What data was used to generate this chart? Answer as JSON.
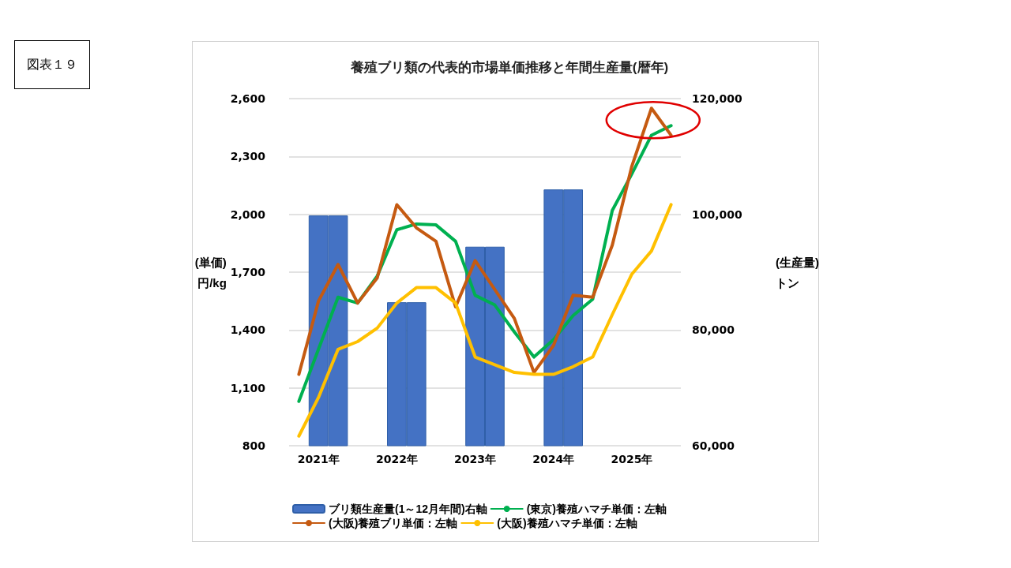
{
  "chart_data": {
    "type": "line",
    "title": "養殖ブリ類の代表的市場単価推移と年間生産量(暦年)",
    "ylabel": "(単価)\n円/kg",
    "y2label": "(生産量)\nトン",
    "annotations": [
      "図表１９"
    ],
    "categories": [
      null,
      "2021年",
      null,
      null,
      null,
      "2022年",
      null,
      null,
      null,
      "2023年",
      null,
      null,
      null,
      "2024年",
      null,
      null,
      null,
      "2025年",
      null,
      null
    ],
    "series": [
      {
        "name": "ブリ類生産量(1～12月年間)右軸",
        "type": "bar",
        "axis": "y2",
        "color": "#4472c4",
        "values": [
          null,
          99800,
          99800,
          null,
          null,
          84800,
          84800,
          null,
          null,
          94400,
          94400,
          null,
          null,
          104300,
          104300,
          null,
          null,
          null,
          null,
          null
        ]
      },
      {
        "name": "(東京)養殖ハマチ単価：左軸",
        "color": "#00b050",
        "values": [
          1030,
          1300,
          1570,
          1540,
          1680,
          1920,
          1950,
          1945,
          1860,
          1580,
          1530,
          1390,
          1260,
          1350,
          1475,
          1560,
          2020,
          2210,
          2410,
          2460
        ]
      },
      {
        "name": "(大阪)養殖ブリ単価：左軸",
        "color": "#c55a11",
        "values": [
          1170,
          1550,
          1740,
          1540,
          1670,
          2050,
          1930,
          1860,
          1520,
          1760,
          1610,
          1460,
          1180,
          1320,
          1580,
          1570,
          1840,
          2250,
          2550,
          2410
        ]
      },
      {
        "name": "(大阪)養殖ハマチ単価：左軸",
        "color": "#ffc000",
        "values": [
          850,
          1050,
          1300,
          1340,
          1410,
          1540,
          1620,
          1620,
          1540,
          1260,
          1220,
          1180,
          1170,
          1170,
          1210,
          1260,
          1480,
          1690,
          1810,
          2050
        ]
      }
    ],
    "ylim": [
      800,
      2600
    ],
    "yticks": [
      {
        "value": 800,
        "label": "800"
      },
      {
        "value": 1100,
        "label": "1,100"
      },
      {
        "value": 1400,
        "label": "1,400"
      },
      {
        "value": 1700,
        "label": "1,700"
      },
      {
        "value": 2000,
        "label": "2,000"
      },
      {
        "value": 2300,
        "label": "2,300"
      },
      {
        "value": 2600,
        "label": "2,600"
      }
    ],
    "y2lim": [
      60000,
      120000
    ],
    "y2ticks": [
      {
        "value": 60000,
        "label": "60,000"
      },
      {
        "value": 80000,
        "label": "80,000"
      },
      {
        "value": 100000,
        "label": "100,000"
      },
      {
        "value": 120000,
        "label": "120,000"
      }
    ],
    "grid": "y",
    "legend": "bottom",
    "marker": "none",
    "line_style": "solid"
  }
}
